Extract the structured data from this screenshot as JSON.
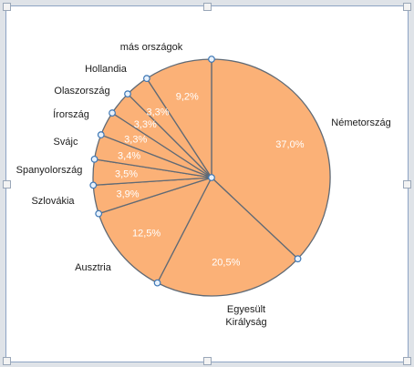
{
  "chart_data": {
    "type": "pie",
    "title": "",
    "categories": [
      "Németország",
      "Egyesült Királyság",
      "Ausztria",
      "Szlovákia",
      "Spanyolország",
      "Svájc",
      "Írország",
      "Olaszország",
      "Hollandia",
      "más országok"
    ],
    "values": [
      37.0,
      20.5,
      12.5,
      3.9,
      3.5,
      3.4,
      3.3,
      3.3,
      3.3,
      9.2
    ],
    "data_labels": [
      "37,0%",
      "20,5%",
      "12,5%",
      "3,9%",
      "3,5%",
      "3,4%",
      "3,3%",
      "3,3%",
      "3,3%",
      "9,2%"
    ],
    "legend": "none",
    "colors": {
      "slice_fill": "#fbb177",
      "slice_border": "#606a75",
      "selection": "#3d77b5"
    }
  }
}
